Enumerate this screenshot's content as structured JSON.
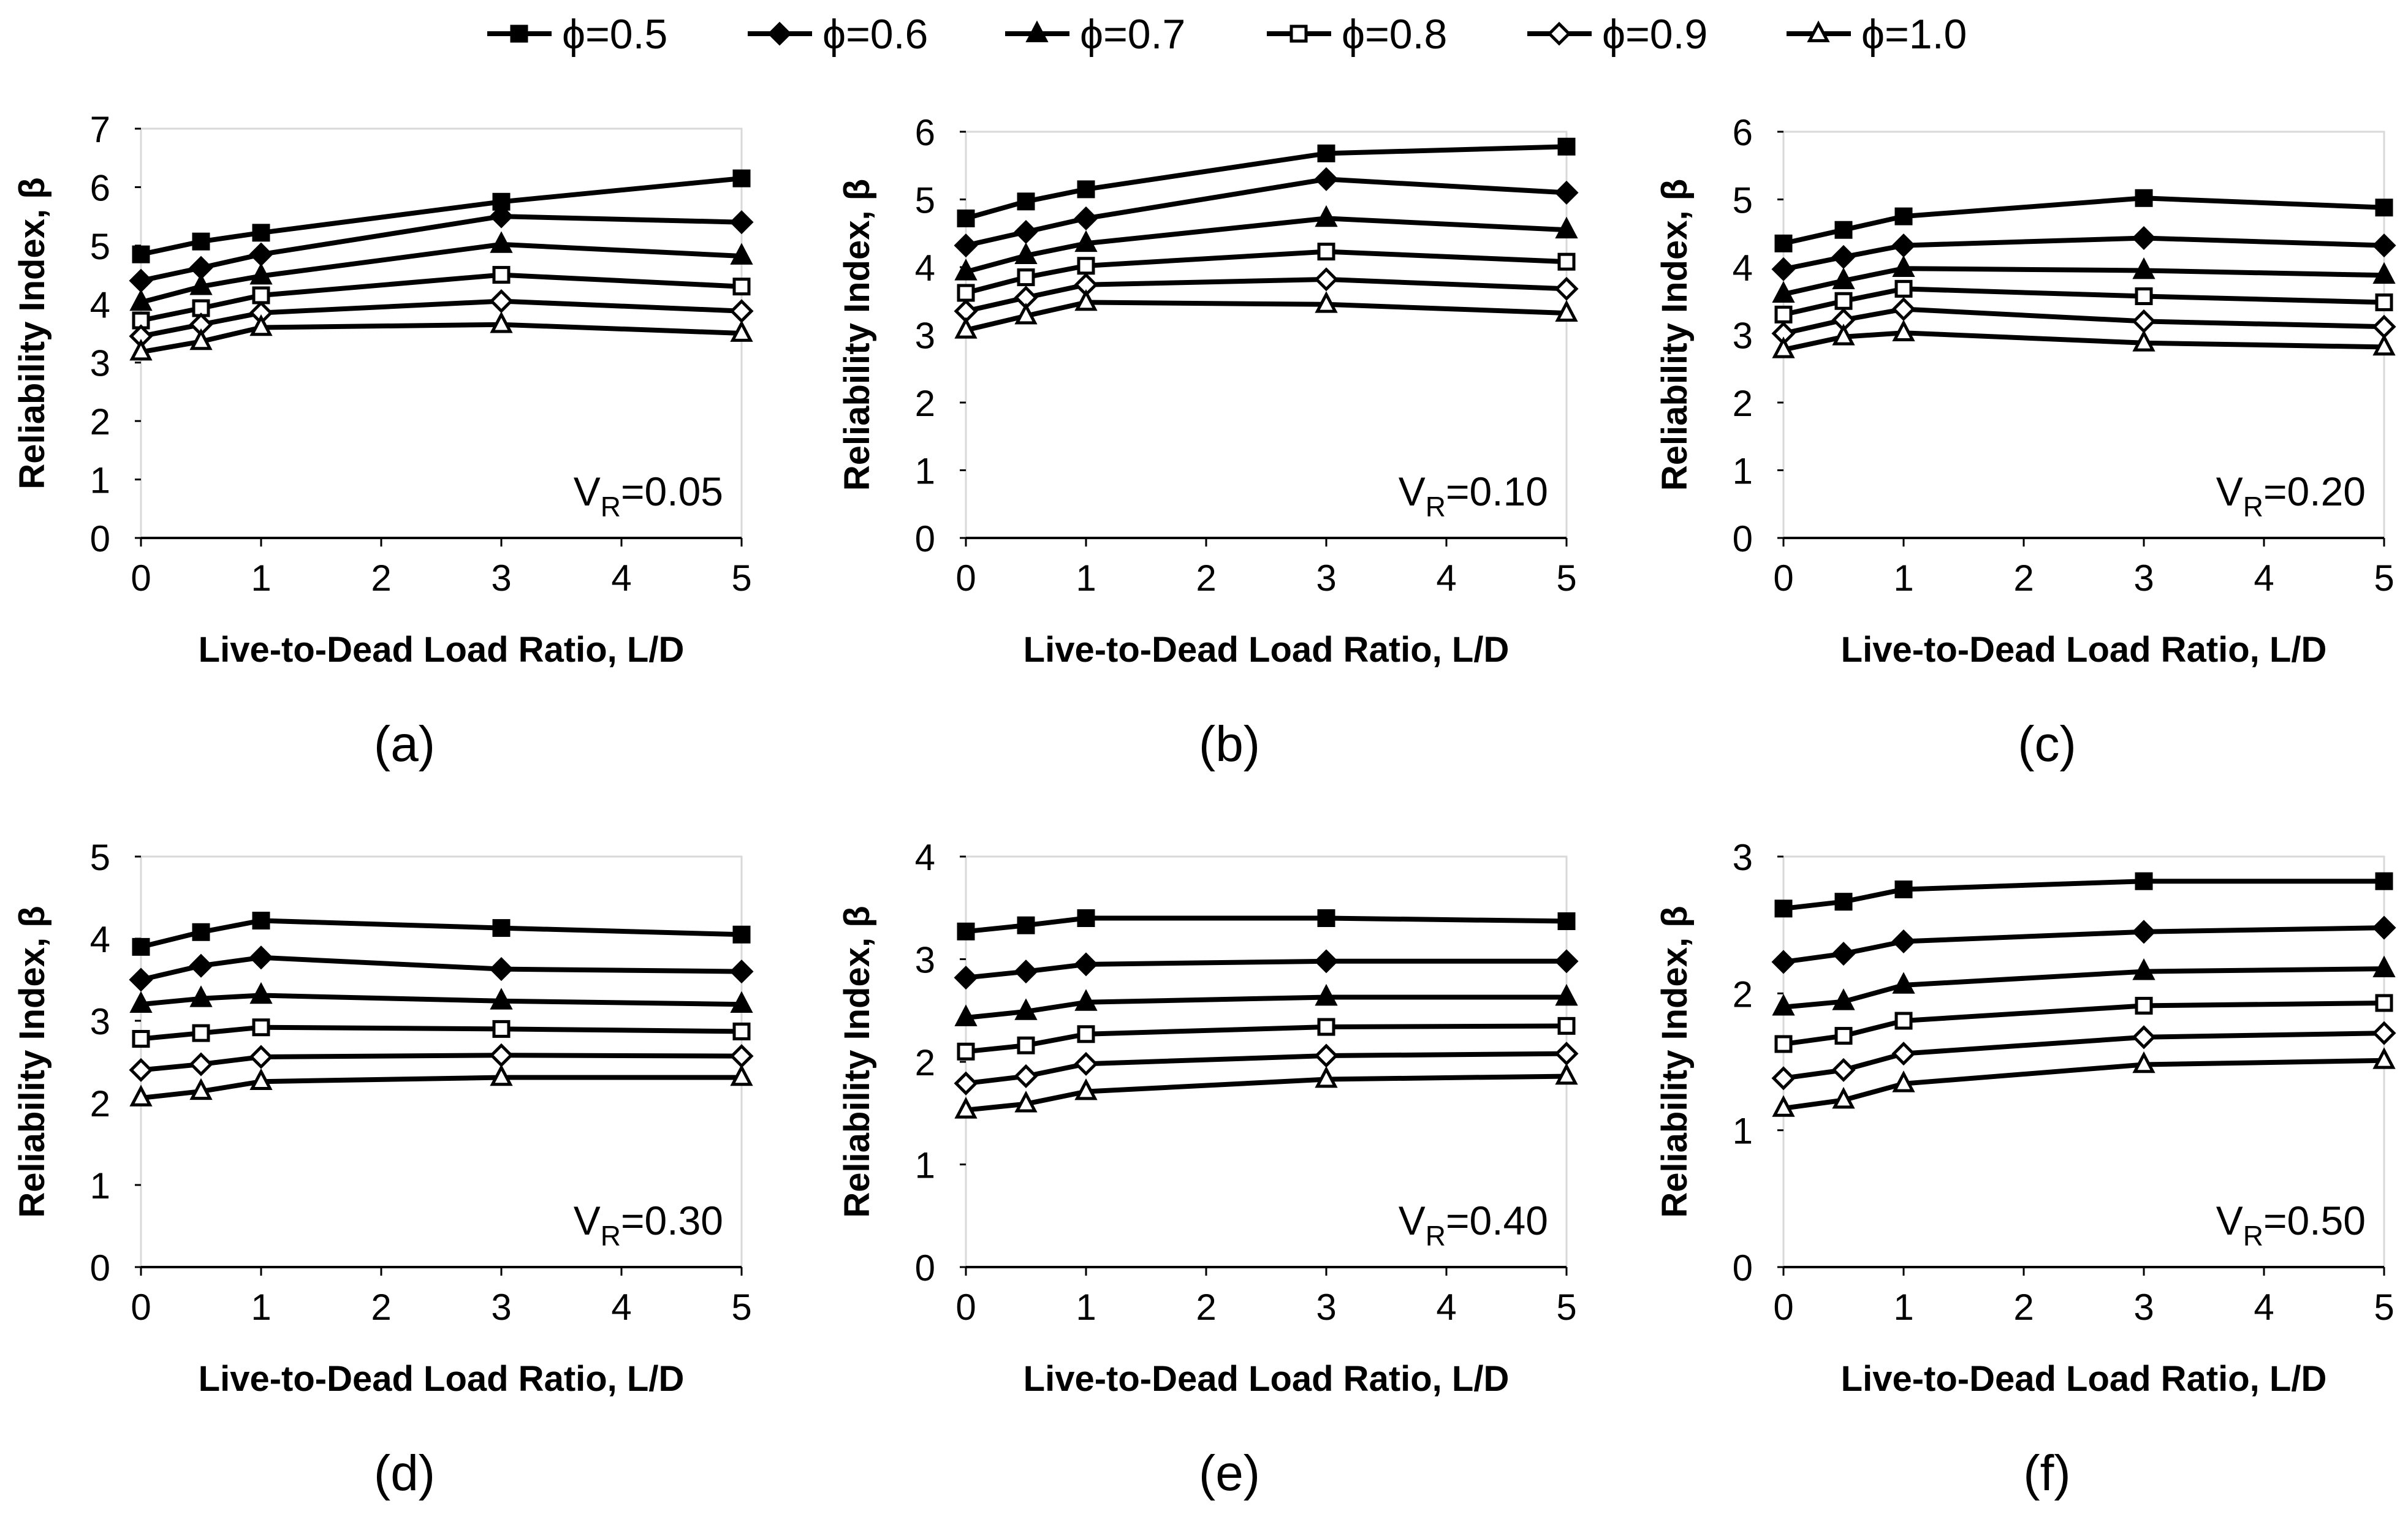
{
  "legend": {
    "items": [
      {
        "label": "ϕ=0.5",
        "marker": "square-filled"
      },
      {
        "label": "ϕ=0.6",
        "marker": "diamond-filled"
      },
      {
        "label": "ϕ=0.7",
        "marker": "triangle-filled"
      },
      {
        "label": "ϕ=0.8",
        "marker": "square-open"
      },
      {
        "label": "ϕ=0.9",
        "marker": "diamond-open"
      },
      {
        "label": "ϕ=1.0",
        "marker": "triangle-open"
      }
    ]
  },
  "colors": {
    "line": "#000000",
    "background": "#ffffff"
  },
  "chart_data": [
    {
      "type": "line",
      "panel_label": "(a)",
      "annotation_prefix": "V",
      "annotation_sub": "R",
      "annotation_value": "=0.05",
      "xlabel": "Live-to-Dead Load Ratio, L/D",
      "ylabel": "Reliability Index, β",
      "xlim": [
        0,
        5
      ],
      "ylim": [
        0,
        7
      ],
      "xticks": [
        0,
        1,
        2,
        3,
        4,
        5
      ],
      "yticks": [
        0,
        1,
        2,
        3,
        4,
        5,
        6,
        7
      ],
      "x": [
        0,
        0.5,
        1,
        3,
        5
      ],
      "series": [
        {
          "name": "ϕ=0.5",
          "values": [
            4.85,
            5.07,
            5.22,
            5.75,
            6.15
          ]
        },
        {
          "name": "ϕ=0.6",
          "values": [
            4.4,
            4.62,
            4.85,
            5.5,
            5.4
          ]
        },
        {
          "name": "ϕ=0.7",
          "values": [
            4.03,
            4.3,
            4.48,
            5.02,
            4.82
          ]
        },
        {
          "name": "ϕ=0.8",
          "values": [
            3.72,
            3.93,
            4.15,
            4.5,
            4.3
          ]
        },
        {
          "name": "ϕ=0.9",
          "values": [
            3.45,
            3.65,
            3.85,
            4.05,
            3.88
          ]
        },
        {
          "name": "ϕ=1.0",
          "values": [
            3.18,
            3.36,
            3.6,
            3.65,
            3.5
          ]
        }
      ]
    },
    {
      "type": "line",
      "panel_label": "(b)",
      "annotation_prefix": "V",
      "annotation_sub": "R",
      "annotation_value": "=0.10",
      "xlabel": "Live-to-Dead Load Ratio, L/D",
      "ylabel": "Reliability Index, β",
      "xlim": [
        0,
        5
      ],
      "ylim": [
        0,
        6
      ],
      "xticks": [
        0,
        1,
        2,
        3,
        4,
        5
      ],
      "yticks": [
        0,
        1,
        2,
        3,
        4,
        5,
        6
      ],
      "x": [
        0,
        0.5,
        1,
        3,
        5
      ],
      "series": [
        {
          "name": "ϕ=0.5",
          "values": [
            4.72,
            4.97,
            5.15,
            5.68,
            5.78
          ]
        },
        {
          "name": "ϕ=0.6",
          "values": [
            4.32,
            4.52,
            4.72,
            5.3,
            5.1
          ]
        },
        {
          "name": "ϕ=0.7",
          "values": [
            3.93,
            4.17,
            4.35,
            4.72,
            4.55
          ]
        },
        {
          "name": "ϕ=0.8",
          "values": [
            3.62,
            3.85,
            4.02,
            4.23,
            4.08
          ]
        },
        {
          "name": "ϕ=0.9",
          "values": [
            3.35,
            3.55,
            3.74,
            3.82,
            3.68
          ]
        },
        {
          "name": "ϕ=1.0",
          "values": [
            3.07,
            3.28,
            3.48,
            3.45,
            3.32
          ]
        }
      ]
    },
    {
      "type": "line",
      "panel_label": "(c)",
      "annotation_prefix": "V",
      "annotation_sub": "R",
      "annotation_value": "=0.20",
      "xlabel": "Live-to-Dead Load Ratio, L/D",
      "ylabel": "Reliability Index, β",
      "xlim": [
        0,
        5
      ],
      "ylim": [
        0,
        6
      ],
      "xticks": [
        0,
        1,
        2,
        3,
        4,
        5
      ],
      "yticks": [
        0,
        1,
        2,
        3,
        4,
        5,
        6
      ],
      "x": [
        0,
        0.5,
        1,
        3,
        5
      ],
      "series": [
        {
          "name": "ϕ=0.5",
          "values": [
            4.35,
            4.55,
            4.75,
            5.02,
            4.88
          ]
        },
        {
          "name": "ϕ=0.6",
          "values": [
            3.97,
            4.15,
            4.32,
            4.43,
            4.32
          ]
        },
        {
          "name": "ϕ=0.7",
          "values": [
            3.6,
            3.8,
            3.98,
            3.95,
            3.88
          ]
        },
        {
          "name": "ϕ=0.8",
          "values": [
            3.3,
            3.5,
            3.68,
            3.57,
            3.48
          ]
        },
        {
          "name": "ϕ=0.9",
          "values": [
            3.02,
            3.22,
            3.38,
            3.2,
            3.12
          ]
        },
        {
          "name": "ϕ=1.0",
          "values": [
            2.78,
            2.97,
            3.03,
            2.88,
            2.82
          ]
        }
      ]
    },
    {
      "type": "line",
      "panel_label": "(d)",
      "annotation_prefix": "V",
      "annotation_sub": "R",
      "annotation_value": "=0.30",
      "xlabel": "Live-to-Dead Load Ratio, L/D",
      "ylabel": "Reliability Index, β",
      "xlim": [
        0,
        5
      ],
      "ylim": [
        0,
        5
      ],
      "xticks": [
        0,
        1,
        2,
        3,
        4,
        5
      ],
      "yticks": [
        0,
        1,
        2,
        3,
        4,
        5
      ],
      "x": [
        0,
        0.5,
        1,
        3,
        5
      ],
      "series": [
        {
          "name": "ϕ=0.5",
          "values": [
            3.9,
            4.08,
            4.22,
            4.13,
            4.05
          ]
        },
        {
          "name": "ϕ=0.6",
          "values": [
            3.5,
            3.67,
            3.77,
            3.63,
            3.6
          ]
        },
        {
          "name": "ϕ=0.7",
          "values": [
            3.2,
            3.27,
            3.31,
            3.24,
            3.2
          ]
        },
        {
          "name": "ϕ=0.8",
          "values": [
            2.78,
            2.85,
            2.92,
            2.9,
            2.87
          ]
        },
        {
          "name": "ϕ=0.9",
          "values": [
            2.4,
            2.47,
            2.56,
            2.58,
            2.57
          ]
        },
        {
          "name": "ϕ=1.0",
          "values": [
            2.06,
            2.14,
            2.26,
            2.31,
            2.31
          ]
        }
      ]
    },
    {
      "type": "line",
      "panel_label": "(e)",
      "annotation_prefix": "V",
      "annotation_sub": "R",
      "annotation_value": "=0.40",
      "xlabel": "Live-to-Dead Load Ratio, L/D",
      "ylabel": "Reliability Index, β",
      "xlim": [
        0,
        5
      ],
      "ylim": [
        0,
        4
      ],
      "xticks": [
        0,
        1,
        2,
        3,
        4,
        5
      ],
      "yticks": [
        0,
        1,
        2,
        3,
        4
      ],
      "x": [
        0,
        0.5,
        1,
        3,
        5
      ],
      "series": [
        {
          "name": "ϕ=0.5",
          "values": [
            3.27,
            3.33,
            3.4,
            3.4,
            3.37
          ]
        },
        {
          "name": "ϕ=0.6",
          "values": [
            2.82,
            2.88,
            2.95,
            2.98,
            2.98
          ]
        },
        {
          "name": "ϕ=0.7",
          "values": [
            2.43,
            2.49,
            2.58,
            2.63,
            2.63
          ]
        },
        {
          "name": "ϕ=0.8",
          "values": [
            2.1,
            2.16,
            2.27,
            2.34,
            2.35
          ]
        },
        {
          "name": "ϕ=0.9",
          "values": [
            1.79,
            1.86,
            1.98,
            2.06,
            2.08
          ]
        },
        {
          "name": "ϕ=1.0",
          "values": [
            1.53,
            1.59,
            1.71,
            1.83,
            1.86
          ]
        }
      ]
    },
    {
      "type": "line",
      "panel_label": "(f)",
      "annotation_prefix": "V",
      "annotation_sub": "R",
      "annotation_value": "=0.50",
      "xlabel": "Live-to-Dead Load Ratio, L/D",
      "ylabel": "Reliability Index, β",
      "xlim": [
        0,
        5
      ],
      "ylim": [
        0,
        3
      ],
      "xticks": [
        0,
        1,
        2,
        3,
        4,
        5
      ],
      "yticks": [
        0,
        1,
        2,
        3
      ],
      "x": [
        0,
        0.5,
        1,
        3,
        5
      ],
      "series": [
        {
          "name": "ϕ=0.5",
          "values": [
            2.62,
            2.67,
            2.76,
            2.82,
            2.82
          ]
        },
        {
          "name": "ϕ=0.6",
          "values": [
            2.23,
            2.29,
            2.38,
            2.45,
            2.48
          ]
        },
        {
          "name": "ϕ=0.7",
          "values": [
            1.9,
            1.94,
            2.06,
            2.16,
            2.18
          ]
        },
        {
          "name": "ϕ=0.8",
          "values": [
            1.63,
            1.69,
            1.8,
            1.91,
            1.93
          ]
        },
        {
          "name": "ϕ=0.9",
          "values": [
            1.38,
            1.44,
            1.56,
            1.68,
            1.71
          ]
        },
        {
          "name": "ϕ=1.0",
          "values": [
            1.16,
            1.22,
            1.34,
            1.48,
            1.51
          ]
        }
      ]
    }
  ]
}
